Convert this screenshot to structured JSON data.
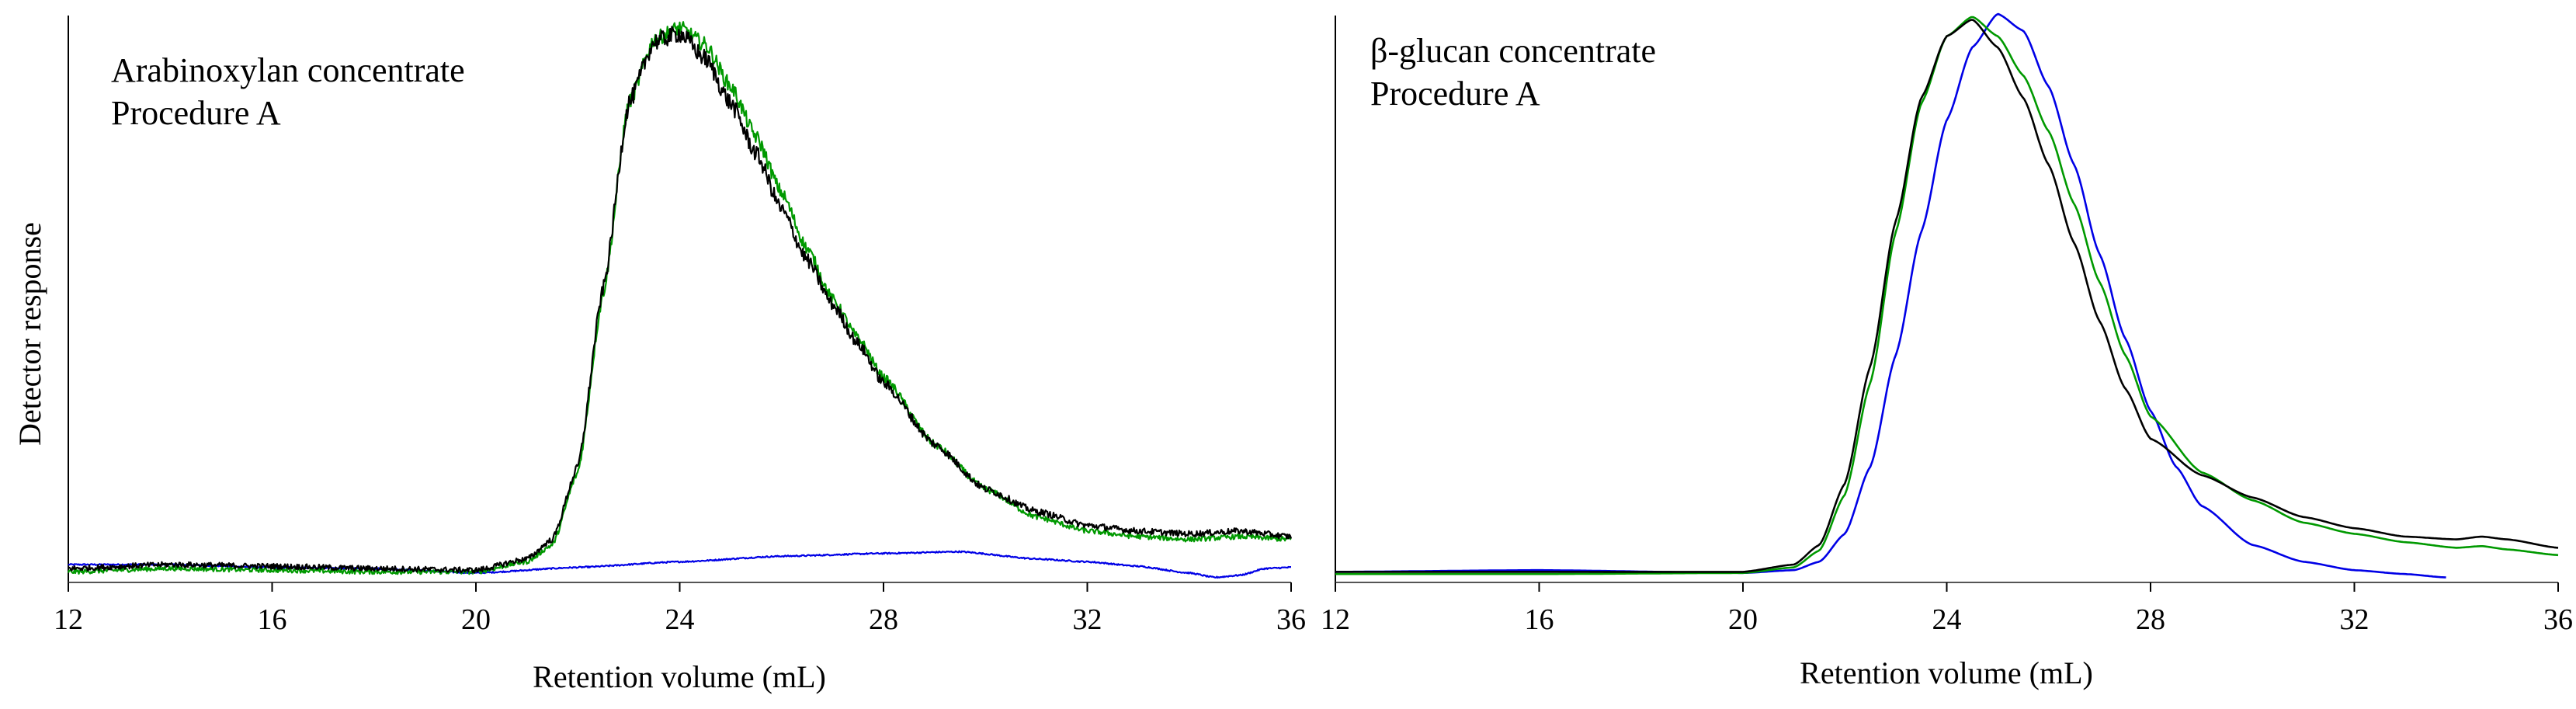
{
  "colors": {
    "black": "#000000",
    "green": "#009900",
    "blue": "#0000e6",
    "axis": "#000000"
  },
  "chart_data": [
    {
      "type": "line",
      "annotations": [
        "Arabinoxylan concentrate",
        "Procedure A"
      ],
      "xlabel": "Retention volume (mL)",
      "ylabel": "Detector response",
      "xlim": [
        12,
        36
      ],
      "ylim": [
        0,
        1
      ],
      "xticks": [
        "12",
        "16",
        "20",
        "24",
        "28",
        "32",
        "36"
      ],
      "grid": false,
      "series": [
        {
          "color": "black",
          "noise": 0.012,
          "x": [
            12,
            14,
            16,
            18,
            20,
            21,
            21.5,
            22,
            22.5,
            23,
            23.5,
            24,
            24.5,
            25,
            25.5,
            26,
            26.5,
            27,
            27.5,
            28,
            29,
            30,
            31,
            32,
            33,
            34,
            35,
            36
          ],
          "y": [
            0.018,
            0.025,
            0.022,
            0.018,
            0.015,
            0.035,
            0.07,
            0.2,
            0.52,
            0.85,
            0.96,
            0.975,
            0.93,
            0.85,
            0.76,
            0.66,
            0.57,
            0.49,
            0.42,
            0.35,
            0.24,
            0.16,
            0.12,
            0.095,
            0.085,
            0.08,
            0.085,
            0.075
          ]
        },
        {
          "color": "green",
          "noise": 0.01,
          "x": [
            12,
            14,
            16,
            18,
            20,
            21,
            21.5,
            22,
            22.5,
            23,
            23.5,
            24,
            24.5,
            25,
            25.5,
            26,
            26.5,
            27,
            27.5,
            28,
            29,
            30,
            31,
            32,
            33,
            34,
            35,
            36
          ],
          "y": [
            0.012,
            0.018,
            0.015,
            0.012,
            0.012,
            0.03,
            0.06,
            0.19,
            0.51,
            0.85,
            0.965,
            0.985,
            0.955,
            0.88,
            0.79,
            0.69,
            0.59,
            0.5,
            0.43,
            0.36,
            0.24,
            0.16,
            0.11,
            0.085,
            0.075,
            0.07,
            0.075,
            0.07
          ]
        },
        {
          "color": "blue",
          "noise": 0.003,
          "x": [
            12,
            14,
            16,
            18,
            20,
            22,
            24,
            26,
            28,
            29.5,
            31,
            32,
            33,
            34,
            34.5,
            35,
            35.5,
            36
          ],
          "y": [
            0.025,
            0.025,
            0.02,
            0.018,
            0.01,
            0.02,
            0.03,
            0.04,
            0.045,
            0.048,
            0.035,
            0.03,
            0.022,
            0.01,
            0.002,
            0.006,
            0.018,
            0.02
          ]
        }
      ]
    },
    {
      "type": "line",
      "annotations": [
        "β-glucan concentrate",
        "Procedure A"
      ],
      "xlabel": "Retention volume (mL)",
      "ylabel": "",
      "xlim": [
        12,
        36
      ],
      "ylim": [
        0,
        1
      ],
      "xticks": [
        "12",
        "16",
        "20",
        "24",
        "28",
        "32",
        "36"
      ],
      "grid": false,
      "series": [
        {
          "color": "black",
          "noise": 0,
          "x": [
            12,
            16,
            20,
            21,
            21.5,
            22,
            22.5,
            23,
            23.5,
            24,
            24.5,
            25,
            25.5,
            26,
            26.5,
            27,
            27.5,
            28,
            29,
            30,
            31,
            32,
            33,
            34,
            34.5,
            35,
            36
          ],
          "y": [
            0.012,
            0.012,
            0.012,
            0.025,
            0.06,
            0.17,
            0.38,
            0.64,
            0.86,
            0.97,
            1.0,
            0.95,
            0.86,
            0.74,
            0.6,
            0.46,
            0.34,
            0.25,
            0.185,
            0.145,
            0.11,
            0.09,
            0.075,
            0.07,
            0.075,
            0.07,
            0.055
          ]
        },
        {
          "color": "green",
          "noise": 0,
          "x": [
            12,
            16,
            20,
            21,
            21.5,
            22,
            22.5,
            23,
            23.5,
            24,
            24.5,
            25,
            25.5,
            26,
            26.5,
            27,
            27.5,
            28,
            29,
            30,
            31,
            32,
            33,
            34,
            34.5,
            35,
            36
          ],
          "y": [
            0.008,
            0.008,
            0.01,
            0.02,
            0.05,
            0.15,
            0.35,
            0.62,
            0.85,
            0.97,
            1.005,
            0.97,
            0.9,
            0.8,
            0.67,
            0.53,
            0.4,
            0.29,
            0.19,
            0.14,
            0.1,
            0.08,
            0.065,
            0.055,
            0.058,
            0.052,
            0.042
          ]
        },
        {
          "color": "blue",
          "noise": 0,
          "x": [
            12,
            16,
            20,
            21,
            21.5,
            22,
            22.5,
            23,
            23.5,
            24,
            24.5,
            25,
            25.5,
            26,
            26.5,
            27,
            27.5,
            28,
            28.5,
            29,
            30,
            31,
            32,
            33,
            33.8
          ],
          "y": [
            0.012,
            0.015,
            0.01,
            0.015,
            0.03,
            0.08,
            0.2,
            0.4,
            0.62,
            0.82,
            0.95,
            1.01,
            0.98,
            0.88,
            0.74,
            0.58,
            0.43,
            0.3,
            0.2,
            0.13,
            0.06,
            0.03,
            0.015,
            0.008,
            0.002
          ]
        }
      ]
    }
  ]
}
